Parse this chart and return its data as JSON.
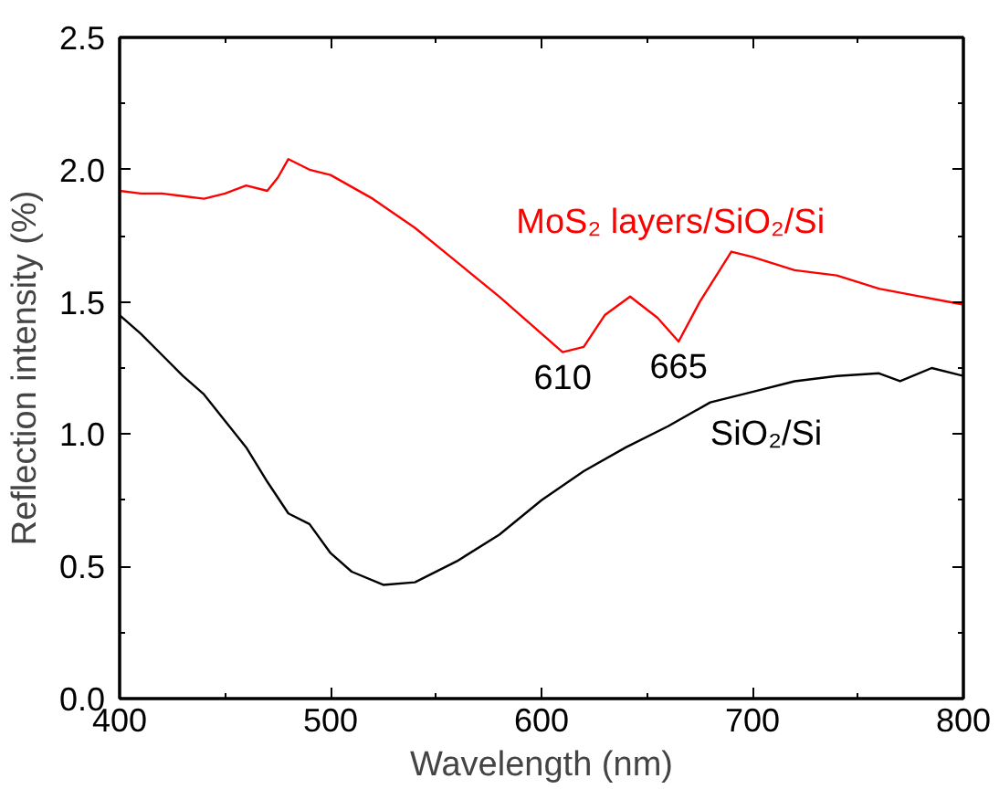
{
  "chart_data": {
    "type": "line",
    "xlabel": "Wavelength (nm)",
    "ylabel": "Reflection intensity (%)",
    "xlim": [
      400,
      800
    ],
    "ylim": [
      0,
      2.5
    ],
    "xticks": [
      400,
      500,
      600,
      700,
      800
    ],
    "yticks": [
      {
        "value": 0,
        "label": "0.0"
      },
      {
        "value": 0.5,
        "label": "0.5"
      },
      {
        "value": 1,
        "label": "1.0"
      },
      {
        "value": 1.5,
        "label": "1.5"
      },
      {
        "value": 2,
        "label": "2.0"
      },
      {
        "value": 2.5,
        "label": "2.5"
      }
    ],
    "grid": false,
    "marker": "none",
    "line_style": "solid",
    "series": [
      {
        "name": "MoS₂ layers/SiO₂/Si",
        "color": "#ff0000",
        "x": [
          400,
          410,
          420,
          430,
          440,
          450,
          460,
          470,
          475,
          480,
          490,
          500,
          520,
          540,
          560,
          580,
          600,
          610,
          620,
          630,
          642,
          655,
          665,
          675,
          690,
          700,
          720,
          740,
          760,
          780,
          800
        ],
        "values": [
          1.92,
          1.91,
          1.91,
          1.9,
          1.89,
          1.91,
          1.94,
          1.92,
          1.97,
          2.04,
          2.0,
          1.98,
          1.89,
          1.78,
          1.65,
          1.52,
          1.38,
          1.31,
          1.33,
          1.45,
          1.52,
          1.44,
          1.35,
          1.5,
          1.69,
          1.67,
          1.62,
          1.6,
          1.55,
          1.52,
          1.49
        ]
      },
      {
        "name": "SiO₂/Si",
        "color": "#000000",
        "x": [
          400,
          410,
          420,
          430,
          440,
          450,
          460,
          470,
          480,
          490,
          500,
          510,
          525,
          540,
          560,
          580,
          600,
          620,
          640,
          660,
          680,
          700,
          720,
          740,
          760,
          770,
          785,
          800
        ],
        "values": [
          1.45,
          1.38,
          1.3,
          1.22,
          1.15,
          1.05,
          0.95,
          0.82,
          0.7,
          0.66,
          0.55,
          0.48,
          0.43,
          0.44,
          0.52,
          0.62,
          0.75,
          0.86,
          0.95,
          1.03,
          1.12,
          1.16,
          1.2,
          1.22,
          1.23,
          1.2,
          1.25,
          1.22
        ]
      }
    ],
    "annotations": [
      {
        "text": "610",
        "x": 610,
        "y": 1.31
      },
      {
        "text": "665",
        "x": 665,
        "y": 1.35
      }
    ]
  }
}
